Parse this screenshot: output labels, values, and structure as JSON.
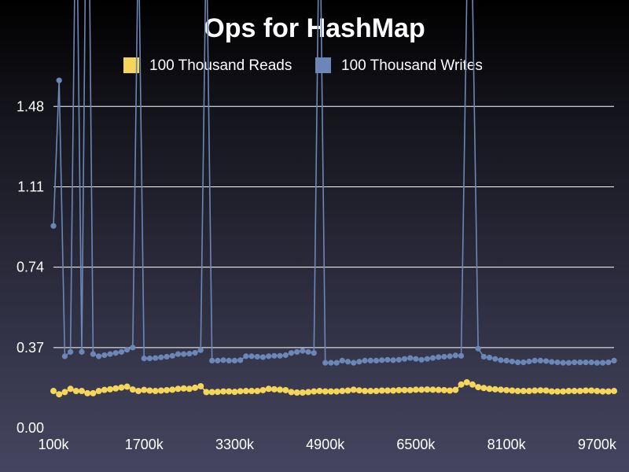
{
  "chart_data": {
    "type": "line",
    "title": "Ops for HashMap",
    "xlabel": "",
    "ylabel": "",
    "x": [
      100,
      200,
      300,
      400,
      500,
      600,
      700,
      800,
      900,
      1000,
      1100,
      1200,
      1300,
      1400,
      1500,
      1600,
      1700,
      1800,
      1900,
      2000,
      2100,
      2200,
      2300,
      2400,
      2500,
      2600,
      2700,
      2800,
      2900,
      3000,
      3100,
      3200,
      3300,
      3400,
      3500,
      3600,
      3700,
      3800,
      3900,
      4000,
      4100,
      4200,
      4300,
      4400,
      4500,
      4600,
      4700,
      4800,
      4900,
      5000,
      5100,
      5200,
      5300,
      5400,
      5500,
      5600,
      5700,
      5800,
      5900,
      6000,
      6100,
      6200,
      6300,
      6400,
      6500,
      6600,
      6700,
      6800,
      6900,
      7000,
      7100,
      7200,
      7300,
      7400,
      7500,
      7600,
      7700,
      7800,
      7900,
      8000,
      8100,
      8200,
      8300,
      8400,
      8500,
      8600,
      8700,
      8800,
      8900,
      9000,
      9100,
      9200,
      9300,
      9400,
      9500,
      9600,
      9700,
      9800,
      9900,
      10000
    ],
    "x_ticks": [
      100,
      1700,
      3300,
      4900,
      6500,
      8100,
      9700
    ],
    "x_tick_labels": [
      "100k",
      "1700k",
      "3300k",
      "4900k",
      "6500k",
      "8100k",
      "9700k"
    ],
    "y_ticks": [
      0,
      0.37,
      0.74,
      1.11,
      1.48
    ],
    "y_tick_labels": [
      "0.00",
      "0.37",
      "0.74",
      "1.11",
      "1.48"
    ],
    "xlim": [
      100,
      10000
    ],
    "ylim": [
      0,
      1.97
    ],
    "grid": true,
    "legend_position": "top",
    "series": [
      {
        "name": "100 Thousand Reads",
        "color": "#f5d659",
        "values": [
          0.17,
          0.155,
          0.165,
          0.18,
          0.17,
          0.17,
          0.16,
          0.16,
          0.17,
          0.175,
          0.178,
          0.182,
          0.186,
          0.19,
          0.177,
          0.17,
          0.175,
          0.172,
          0.17,
          0.172,
          0.174,
          0.176,
          0.18,
          0.182,
          0.18,
          0.185,
          0.192,
          0.165,
          0.165,
          0.166,
          0.168,
          0.168,
          0.166,
          0.169,
          0.17,
          0.17,
          0.17,
          0.174,
          0.18,
          0.178,
          0.176,
          0.174,
          0.165,
          0.163,
          0.163,
          0.165,
          0.168,
          0.17,
          0.168,
          0.168,
          0.168,
          0.17,
          0.172,
          0.176,
          0.173,
          0.17,
          0.17,
          0.17,
          0.172,
          0.172,
          0.172,
          0.174,
          0.174,
          0.174,
          0.176,
          0.176,
          0.177,
          0.176,
          0.175,
          0.174,
          0.172,
          0.175,
          0.2,
          0.21,
          0.2,
          0.188,
          0.184,
          0.18,
          0.178,
          0.176,
          0.174,
          0.172,
          0.17,
          0.17,
          0.17,
          0.172,
          0.173,
          0.172,
          0.168,
          0.168,
          0.168,
          0.17,
          0.17,
          0.17,
          0.172,
          0.172,
          0.17,
          0.168,
          0.168,
          0.17
        ]
      },
      {
        "name": "100 Thousand Writes",
        "color": "#6b87b8",
        "values": [
          0.93,
          1.6,
          0.33,
          0.35,
          2.6,
          0.35,
          3.1,
          0.34,
          0.33,
          0.335,
          0.34,
          0.345,
          0.35,
          0.36,
          0.37,
          2.3,
          0.32,
          0.32,
          0.322,
          0.325,
          0.328,
          0.332,
          0.34,
          0.34,
          0.342,
          0.346,
          0.358,
          2.3,
          0.31,
          0.31,
          0.312,
          0.31,
          0.31,
          0.312,
          0.33,
          0.33,
          0.328,
          0.326,
          0.33,
          0.332,
          0.332,
          0.335,
          0.345,
          0.35,
          0.355,
          0.35,
          0.345,
          2.5,
          0.3,
          0.3,
          0.3,
          0.31,
          0.305,
          0.3,
          0.305,
          0.31,
          0.31,
          0.31,
          0.312,
          0.314,
          0.312,
          0.314,
          0.318,
          0.322,
          0.318,
          0.314,
          0.318,
          0.322,
          0.326,
          0.328,
          0.33,
          0.334,
          0.332,
          2.0,
          2.0,
          0.365,
          0.328,
          0.324,
          0.318,
          0.312,
          0.31,
          0.306,
          0.302,
          0.302,
          0.306,
          0.31,
          0.31,
          0.308,
          0.304,
          0.302,
          0.3,
          0.3,
          0.302,
          0.302,
          0.302,
          0.302,
          0.3,
          0.3,
          0.302,
          0.31
        ]
      }
    ]
  }
}
